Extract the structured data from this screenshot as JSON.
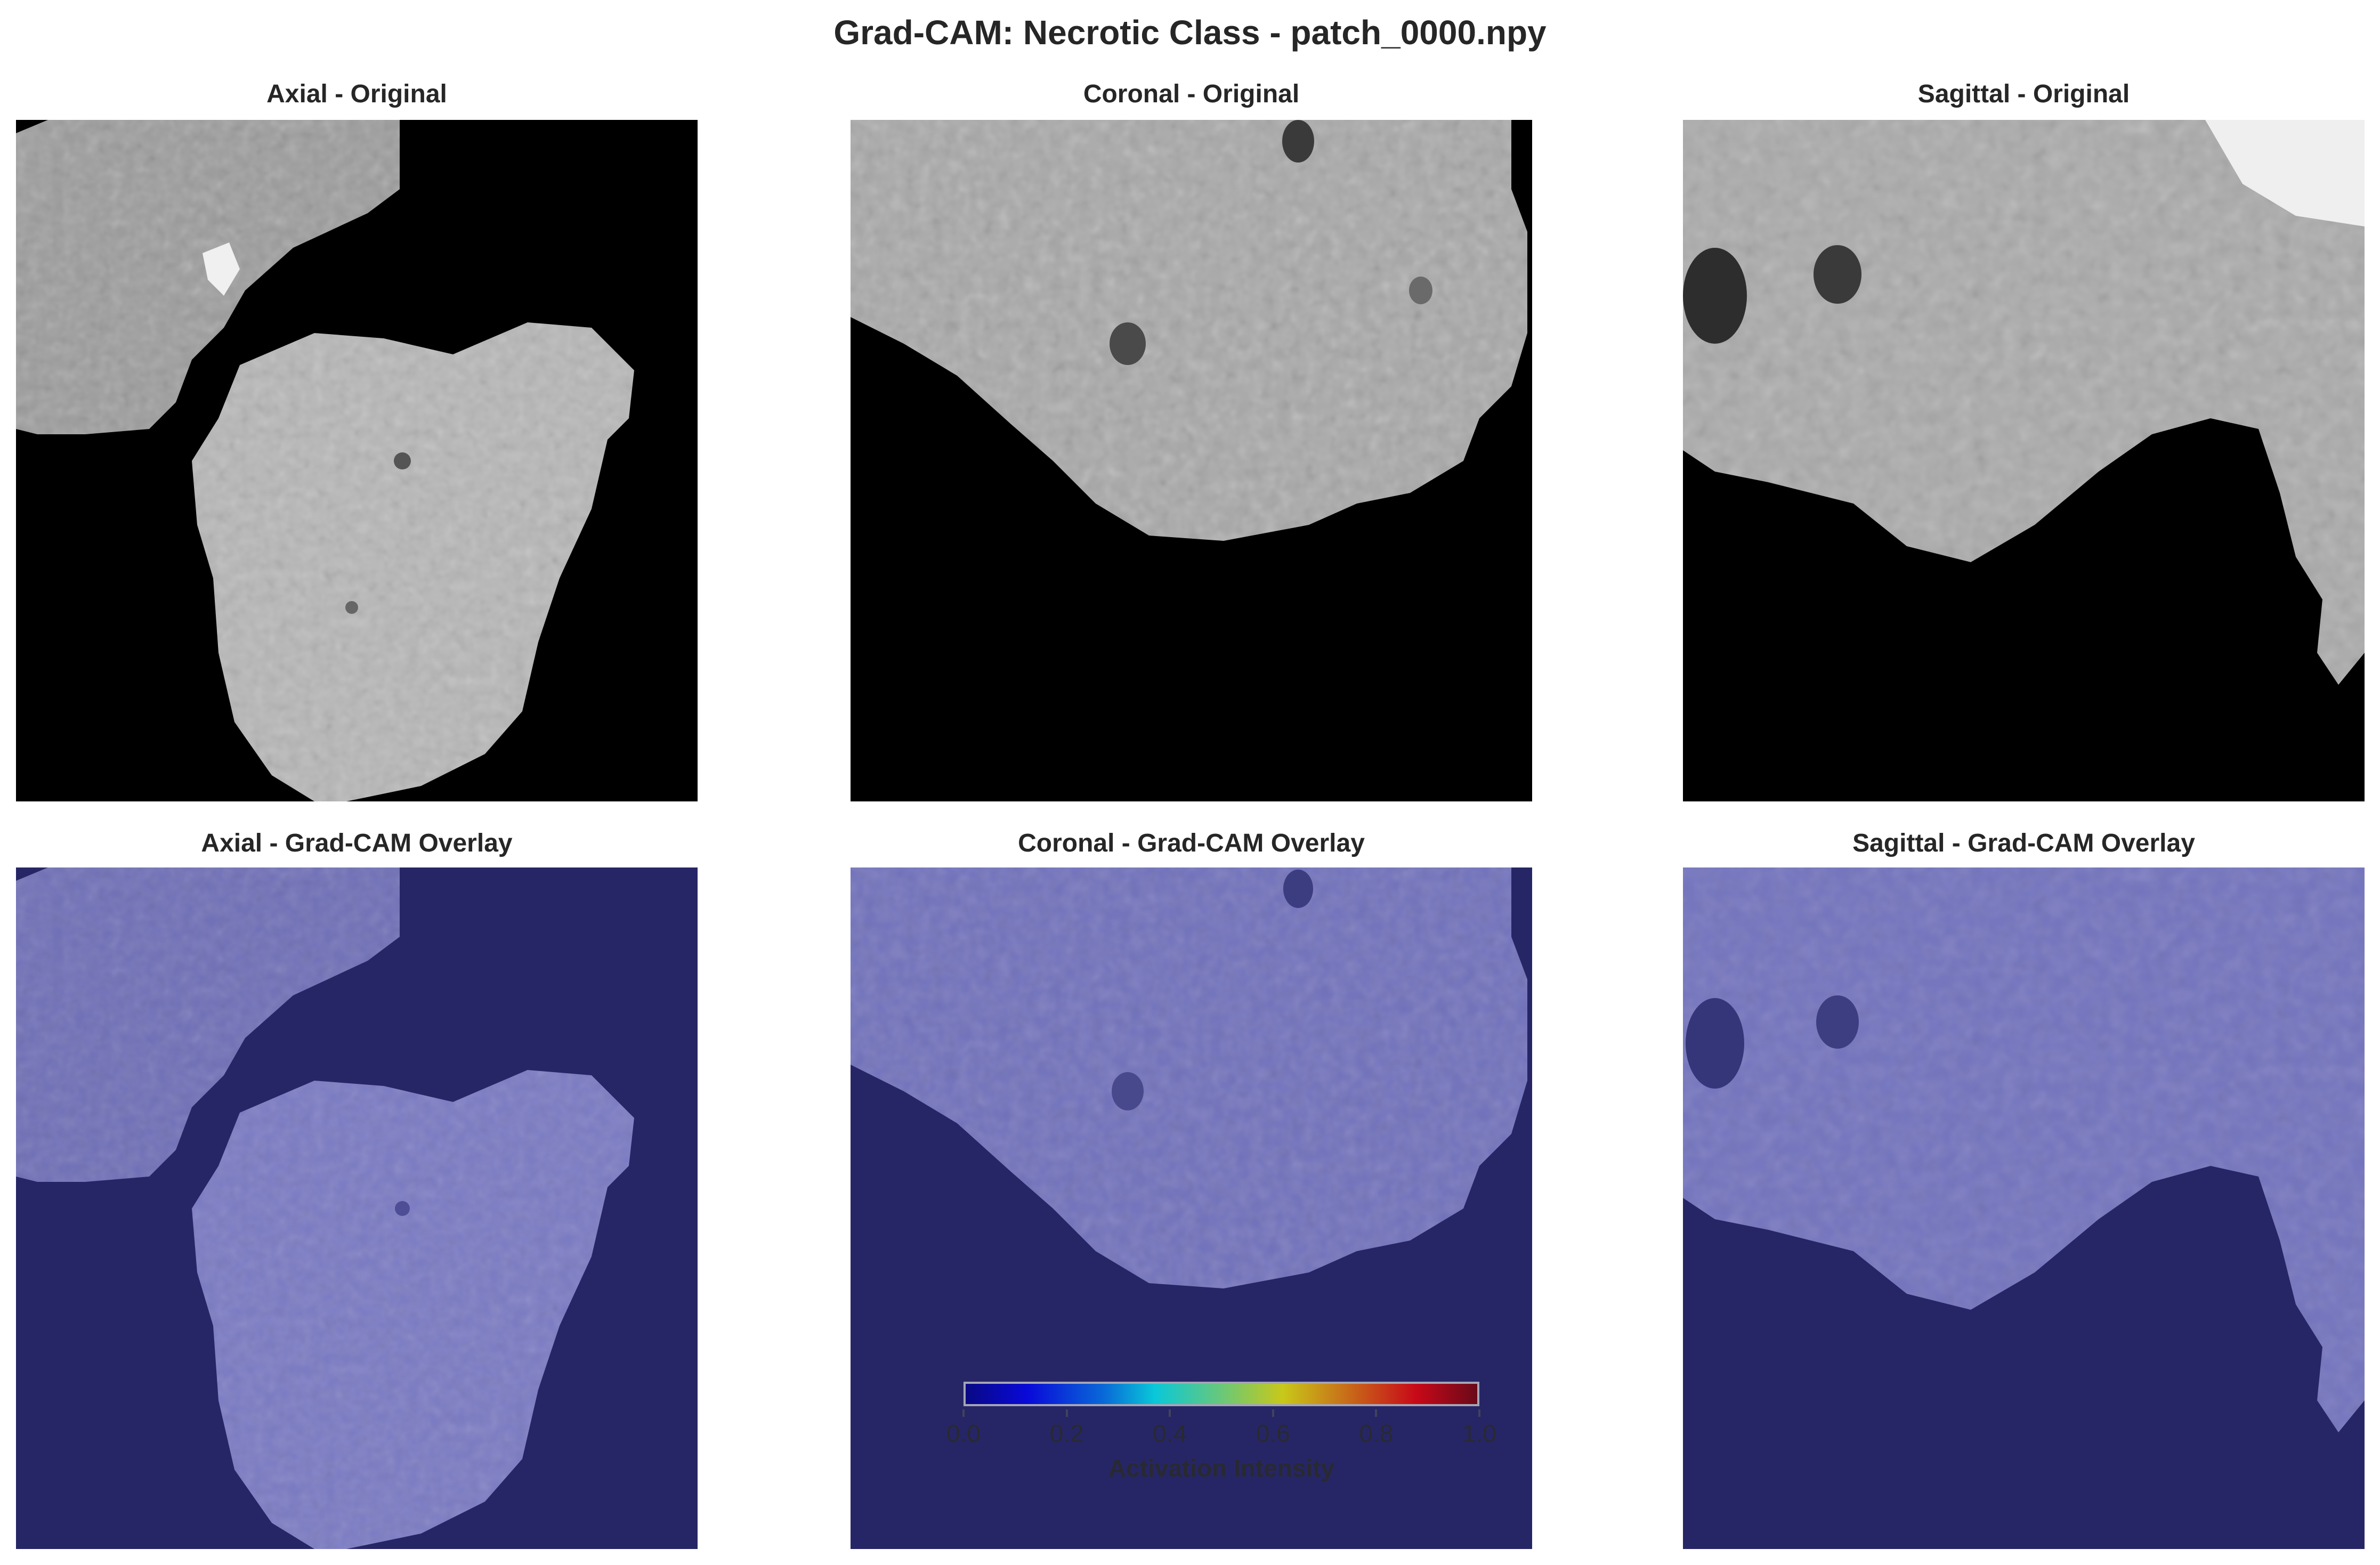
{
  "figure": {
    "title": "Grad-CAM: Necrotic Class - patch_0000.npy"
  },
  "panels": [
    {
      "title": "Axial - Original",
      "view": "axial",
      "mode": "original"
    },
    {
      "title": "Coronal - Original",
      "view": "coronal",
      "mode": "original"
    },
    {
      "title": "Sagittal - Original",
      "view": "sagittal",
      "mode": "original"
    },
    {
      "title": "Axial - Grad-CAM Overlay",
      "view": "axial",
      "mode": "overlay"
    },
    {
      "title": "Coronal - Grad-CAM Overlay",
      "view": "coronal",
      "mode": "overlay"
    },
    {
      "title": "Sagittal - Grad-CAM Overlay",
      "view": "sagittal",
      "mode": "overlay"
    }
  ],
  "colorbar": {
    "label": "Activation Intensity",
    "colormap": "jet",
    "ticks": [
      "0.0",
      "0.2",
      "0.4",
      "0.6",
      "0.8",
      "1.0"
    ],
    "range": [
      0.0,
      1.0
    ]
  },
  "colors": {
    "background_voxel": "#000000",
    "overlay_background": "#262666",
    "overlay_tissue": "#7a7ac8",
    "tissue_gray": "#bdbdbd"
  }
}
